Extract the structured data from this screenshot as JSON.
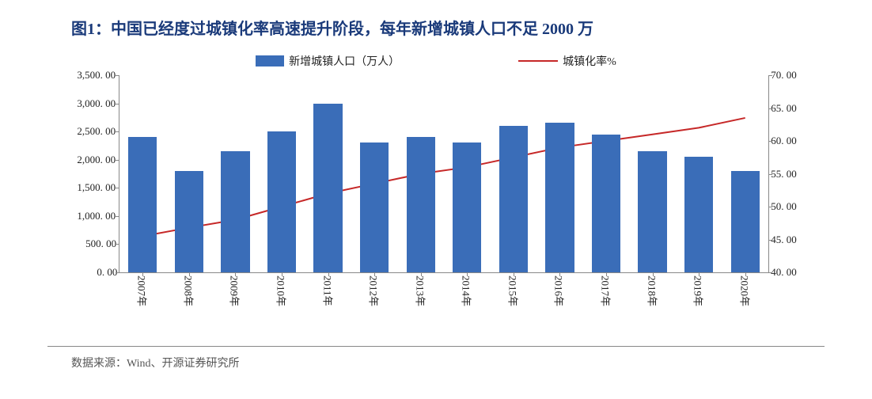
{
  "title": "图1：中国已经度过城镇化率高速提升阶段，每年新增城镇人口不足 2000 万",
  "title_fontsize": 20,
  "legend": {
    "bar_label": "新增城镇人口（万人）",
    "line_label": "城镇化率%"
  },
  "chart": {
    "type": "bar+line",
    "categories": [
      "2007年",
      "2008年",
      "2009年",
      "2010年",
      "2011年",
      "2012年",
      "2013年",
      "2014年",
      "2015年",
      "2016年",
      "2017年",
      "2018年",
      "2019年",
      "2020年"
    ],
    "bar_values": [
      2400,
      1800,
      2150,
      2500,
      3000,
      2300,
      2400,
      2300,
      2600,
      2650,
      2450,
      2150,
      2050,
      1800
    ],
    "line_values": [
      45.5,
      46.8,
      48,
      50,
      52,
      53.5,
      55,
      56,
      57.5,
      59,
      60,
      61,
      62,
      63.5
    ],
    "bar_color": "#3a6db8",
    "line_color": "#c62828",
    "line_width": 2,
    "background_color": "#ffffff",
    "axis_color": "#888888",
    "text_color": "#222222",
    "y_left": {
      "min": 0,
      "max": 3500,
      "step": 500,
      "decimals": 2
    },
    "y_right": {
      "min": 40,
      "max": 70,
      "step": 5,
      "decimals": 2
    },
    "bar_width_ratio": 0.62,
    "tick_fontsize": 13,
    "xlabel_fontsize": 13,
    "xlabel_rotation": 90
  },
  "footer": "数据来源：Wind、开源证券研究所"
}
